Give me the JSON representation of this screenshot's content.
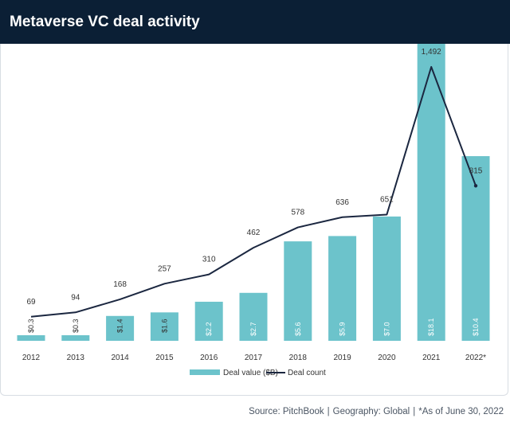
{
  "header": {
    "title": "Metaverse VC deal activity"
  },
  "footer": {
    "source": "Source: PitchBook",
    "geography": "Geography: Global",
    "note": "*As of June 30, 2022"
  },
  "colors": {
    "bar": "#6cc3cb",
    "line": "#1b2740",
    "header": "#0b1f35"
  },
  "chart_data": {
    "type": "bar",
    "title": "Metaverse VC deal activity",
    "categories": [
      "2012",
      "2013",
      "2014",
      "2015",
      "2016",
      "2017",
      "2018",
      "2019",
      "2020",
      "2021",
      "2022*"
    ],
    "series": [
      {
        "name": "Deal value ($B)",
        "type": "bar",
        "values": [
          0.3,
          0.3,
          1.4,
          1.6,
          2.2,
          2.7,
          5.6,
          5.9,
          7.0,
          18.1,
          10.4
        ],
        "labels": [
          "$0.3",
          "$0.3",
          "$1.4",
          "$1.6",
          "$2.2",
          "$2.7",
          "$5.6",
          "$5.9",
          "$7.0",
          "$18.1",
          "$10.4"
        ]
      },
      {
        "name": "Deal count",
        "type": "line",
        "values": [
          69,
          94,
          168,
          257,
          310,
          462,
          578,
          636,
          651,
          1492,
          815
        ],
        "labels": [
          "69",
          "94",
          "168",
          "257",
          "310",
          "462",
          "578",
          "636",
          "651",
          "1,492",
          "815"
        ]
      }
    ],
    "ylim_value": [
      0,
      20
    ],
    "ylim_count": [
      0,
      1600
    ],
    "legend": "bottom-center",
    "grid": false
  }
}
